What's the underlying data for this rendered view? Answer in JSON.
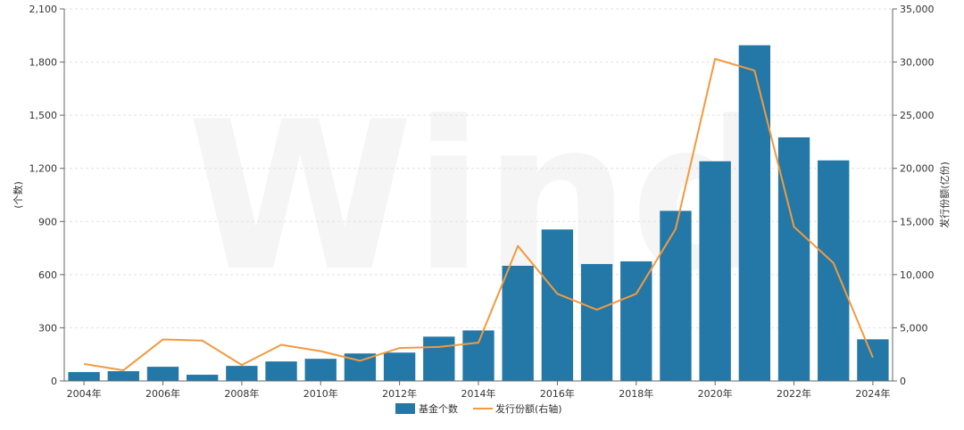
{
  "chart_data": {
    "type": "bar",
    "watermark": "Wind",
    "x": [
      "2004年",
      "2005年",
      "2006年",
      "2007年",
      "2008年",
      "2009年",
      "2010年",
      "2011年",
      "2012年",
      "2013年",
      "2014年",
      "2015年",
      "2016年",
      "2017年",
      "2018年",
      "2019年",
      "2020年",
      "2021年",
      "2022年",
      "2023年",
      "2024年"
    ],
    "x_tick_labels": [
      "2004年",
      "2006年",
      "2008年",
      "2010年",
      "2012年",
      "2014年",
      "2016年",
      "2018年",
      "2020年",
      "2022年",
      "2024年"
    ],
    "ylabel_left": "(个数)",
    "ylabel_right": "发行份额(亿份)",
    "ylim_left": [
      0,
      2100
    ],
    "ylim_right": [
      0,
      35000
    ],
    "y_ticks_left": [
      "0",
      "300",
      "600",
      "900",
      "1,200",
      "1,500",
      "1,800",
      "2,100"
    ],
    "y_ticks_right": [
      "0",
      "5,000",
      "10,000",
      "15,000",
      "20,000",
      "25,000",
      "30,000",
      "35,000"
    ],
    "grid": true,
    "legend_position": "bottom",
    "series": [
      {
        "name": "基金个数",
        "type": "bar",
        "axis": "left",
        "color": "#2378a8",
        "values": [
          50,
          55,
          80,
          35,
          85,
          110,
          125,
          155,
          160,
          250,
          285,
          650,
          855,
          660,
          675,
          960,
          1240,
          1895,
          1375,
          1245,
          235
        ]
      },
      {
        "name": "发行份额(右轴)",
        "type": "line",
        "axis": "right",
        "color": "#f29a3e",
        "values": [
          1600,
          1000,
          3900,
          3800,
          1500,
          3400,
          2800,
          1900,
          3100,
          3200,
          3600,
          12700,
          8200,
          6700,
          8200,
          14300,
          30300,
          29200,
          14500,
          11100,
          2200
        ]
      }
    ]
  }
}
